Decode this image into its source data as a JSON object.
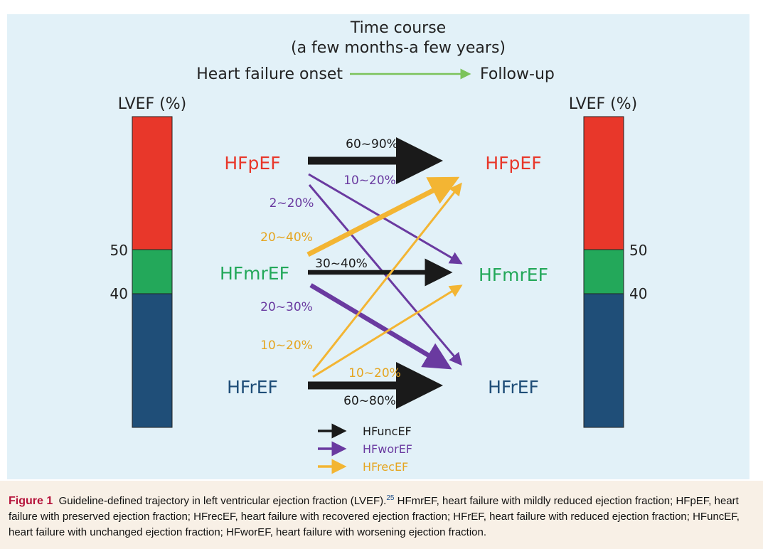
{
  "header": {
    "title_line1": "Time course",
    "title_line2": "(a few months-a few years)",
    "onset_label": "Heart failure onset",
    "followup_label": "Follow-up"
  },
  "colors": {
    "hfpef": "#e8372a",
    "hfmref": "#23a85a",
    "hfref": "#1f4e78",
    "unchanged": "#1a1a1a",
    "worsening": "#6a3aa0",
    "recovered": "#f3b533",
    "timeline_arrow": "#7cc35b"
  },
  "left_bar": {
    "axis_label": "LVEF (%)",
    "tick_50": "50",
    "tick_40": "40"
  },
  "right_bar": {
    "axis_label": "LVEF (%)",
    "tick_50": "50",
    "tick_40": "40"
  },
  "categories_left": {
    "hfpef": "HFpEF",
    "hfmref": "HFmrEF",
    "hfref": "HFrEF"
  },
  "categories_right": {
    "hfpef": "HFpEF",
    "hfmref": "HFmrEF",
    "hfref": "HFrEF"
  },
  "transitions": {
    "hfpef_to_hfpef": "60~90%",
    "hfpef_to_hfmref": "10~20%",
    "hfpef_to_hfref": "2~20%",
    "hfmref_to_hfpef": "20~40%",
    "hfmref_to_hfmref": "30~40%",
    "hfmref_to_hfref": "20~30%",
    "hfref_to_hfpef": "10~20%",
    "hfref_to_hfmref": "10~20%",
    "hfref_to_hfref": "60~80%"
  },
  "legend": {
    "unchanged": "HFuncEF",
    "worsening": "HFworEF",
    "recovered": "HFrecEF"
  },
  "caption": {
    "label": "Figure 1",
    "text_main": "Guideline-defined trajectory in left ventricular ejection fraction (LVEF).",
    "reference": "25",
    "text_rest": " HFmrEF, heart failure with mildly reduced ejection fraction; HFpEF, heart failure with preserved ejection fraction; HFrecEF, heart failure with recovered ejection fraction; HFrEF, heart failure with reduced ejection fraction; HFuncEF, heart failure with unchanged ejection fraction; HFworEF, heart failure with worsening ejection fraction."
  }
}
